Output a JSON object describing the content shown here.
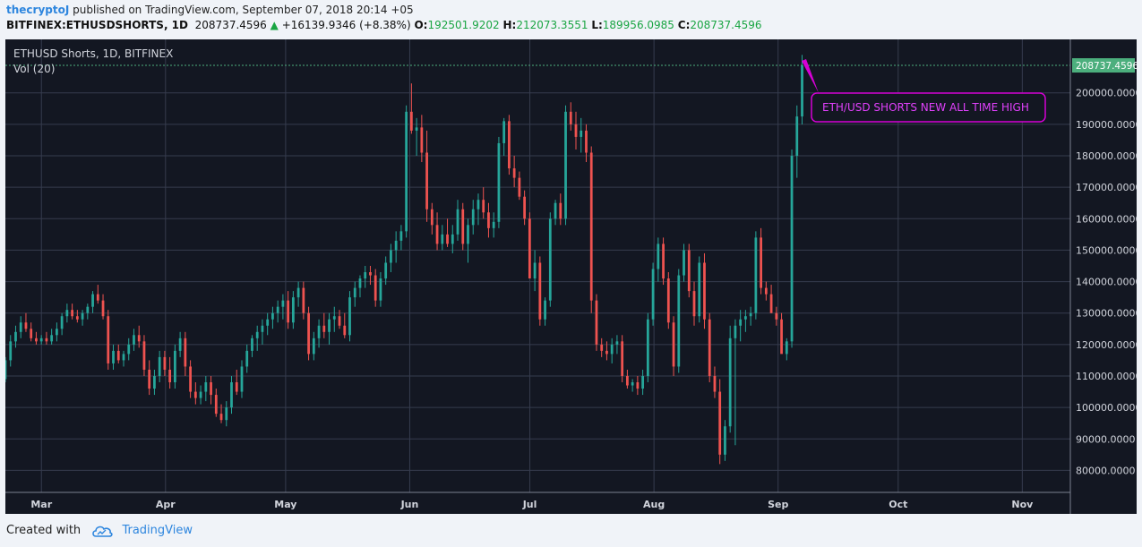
{
  "header": {
    "author": "thecryptoJ",
    "published": "published on TradingView.com, September 07, 2018 20:14 +05",
    "symbol": "BITFINEX:ETHUSDSHORTS, 1D",
    "last": "208737.4596",
    "change_arrow": "▲",
    "change": "+16139.9346 (+8.38%)",
    "o_label": "O:",
    "o_value": "192501.9202",
    "h_label": "H:",
    "h_value": "212073.3551",
    "l_label": "L:",
    "l_value": "189956.0985",
    "c_label": "C:",
    "c_value": "208737.4596"
  },
  "legend": {
    "title": "ETHUSD Shorts, 1D, BITFINEX",
    "volume": "Vol (20)"
  },
  "annotation": "ETH/USD SHORTS NEW ALL TIME HIGH",
  "last_price_label": "208737.4596",
  "footer": {
    "created_with": "Created with",
    "brand": "TradingView"
  },
  "colors": {
    "up": "#26a69a",
    "down": "#ef5350",
    "background": "#131722",
    "grid": "#363c4e",
    "annotation": "#d500d5",
    "last_price": "#4caf7d"
  },
  "chart_data": {
    "type": "candlestick",
    "title": "ETHUSD Shorts, 1D, BITFINEX",
    "ylim": [
      73000,
      217000
    ],
    "y_ticks": [
      80000,
      90000,
      100000,
      110000,
      120000,
      130000,
      140000,
      150000,
      160000,
      170000,
      180000,
      190000,
      200000
    ],
    "y_tick_labels": [
      "80000.0000",
      "90000.0000",
      "100000.0000",
      "110000.0000",
      "120000.0000",
      "130000.0000",
      "140000.0000",
      "150000.0000",
      "160000.0000",
      "170000.0000",
      "180000.0000",
      "190000.0000",
      "200000.0000"
    ],
    "x_start": "2018-02-20",
    "x_end": "2018-11-13",
    "x_ticks": [
      "2018-03-01",
      "2018-04-01",
      "2018-05-01",
      "2018-06-01",
      "2018-07-01",
      "2018-08-01",
      "2018-09-01",
      "2018-10-01",
      "2018-11-01"
    ],
    "x_tick_labels": [
      "Mar",
      "Apr",
      "May",
      "Jun",
      "Jul",
      "Aug",
      "Sep",
      "Oct",
      "Nov"
    ],
    "last_price": 208737.4596,
    "annotation_text": "ETH/USD SHORTS NEW ALL TIME HIGH",
    "candles_ohlc": [
      [
        109000,
        116000,
        108000,
        115000
      ],
      [
        115000,
        123000,
        113000,
        121000
      ],
      [
        121000,
        126000,
        119000,
        124000
      ],
      [
        124000,
        129000,
        122000,
        127000
      ],
      [
        127000,
        130000,
        124000,
        125000
      ],
      [
        125000,
        127000,
        121000,
        122000
      ],
      [
        122000,
        124000,
        120000,
        121000
      ],
      [
        121000,
        123000,
        120000,
        122000
      ],
      [
        122000,
        124000,
        120000,
        121000
      ],
      [
        121000,
        125000,
        120000,
        123000
      ],
      [
        123000,
        127000,
        121000,
        125000
      ],
      [
        125000,
        130000,
        123000,
        129000
      ],
      [
        129000,
        133000,
        127000,
        131000
      ],
      [
        131000,
        133000,
        128000,
        129000
      ],
      [
        129000,
        131000,
        127000,
        128000
      ],
      [
        128000,
        131000,
        126000,
        130000
      ],
      [
        130000,
        133000,
        128000,
        132000
      ],
      [
        132000,
        137000,
        130000,
        136000
      ],
      [
        136000,
        139000,
        133000,
        134000
      ],
      [
        134000,
        136000,
        128000,
        129000
      ],
      [
        129000,
        131000,
        112000,
        114000
      ],
      [
        114000,
        120000,
        112000,
        118000
      ],
      [
        118000,
        120000,
        114000,
        115000
      ],
      [
        115000,
        118000,
        113000,
        117000
      ],
      [
        117000,
        122000,
        115000,
        120000
      ],
      [
        120000,
        125000,
        118000,
        123000
      ],
      [
        123000,
        126000,
        119000,
        121000
      ],
      [
        121000,
        123000,
        110000,
        112000
      ],
      [
        112000,
        115000,
        104000,
        106000
      ],
      [
        106000,
        112000,
        104000,
        110000
      ],
      [
        110000,
        118000,
        108000,
        116000
      ],
      [
        116000,
        118000,
        110000,
        112000
      ],
      [
        112000,
        116000,
        106000,
        108000
      ],
      [
        108000,
        120000,
        106000,
        118000
      ],
      [
        118000,
        124000,
        116000,
        122000
      ],
      [
        122000,
        124000,
        110000,
        113000
      ],
      [
        113000,
        115000,
        103000,
        105000
      ],
      [
        105000,
        108000,
        101000,
        103000
      ],
      [
        103000,
        107000,
        101000,
        105000
      ],
      [
        105000,
        110000,
        102000,
        108000
      ],
      [
        108000,
        110000,
        101000,
        104000
      ],
      [
        104000,
        106000,
        97000,
        98000
      ],
      [
        98000,
        101000,
        95000,
        96000
      ],
      [
        96000,
        102000,
        94000,
        100000
      ],
      [
        100000,
        110000,
        98000,
        108000
      ],
      [
        108000,
        112000,
        104000,
        105000
      ],
      [
        105000,
        115000,
        103000,
        113000
      ],
      [
        113000,
        120000,
        111000,
        118000
      ],
      [
        118000,
        123000,
        116000,
        122000
      ],
      [
        122000,
        126000,
        118000,
        124000
      ],
      [
        124000,
        128000,
        120000,
        126000
      ],
      [
        126000,
        130000,
        123000,
        128000
      ],
      [
        128000,
        132000,
        125000,
        130000
      ],
      [
        130000,
        134000,
        127000,
        132000
      ],
      [
        132000,
        136000,
        128000,
        134000
      ],
      [
        134000,
        137000,
        125000,
        127000
      ],
      [
        127000,
        137000,
        125000,
        135000
      ],
      [
        135000,
        140000,
        132000,
        138000
      ],
      [
        138000,
        140000,
        128000,
        130000
      ],
      [
        130000,
        132000,
        115000,
        117000
      ],
      [
        117000,
        124000,
        115000,
        122000
      ],
      [
        122000,
        128000,
        119000,
        126000
      ],
      [
        126000,
        130000,
        122000,
        124000
      ],
      [
        124000,
        130000,
        120000,
        128000
      ],
      [
        128000,
        132000,
        124000,
        129000
      ],
      [
        129000,
        131000,
        125000,
        126000
      ],
      [
        126000,
        130000,
        122000,
        123000
      ],
      [
        123000,
        137000,
        121000,
        135000
      ],
      [
        135000,
        140000,
        132000,
        138000
      ],
      [
        138000,
        142000,
        135000,
        141000
      ],
      [
        141000,
        145000,
        138000,
        143000
      ],
      [
        143000,
        145000,
        139000,
        142000
      ],
      [
        142000,
        144000,
        132000,
        134000
      ],
      [
        134000,
        143000,
        132000,
        141000
      ],
      [
        141000,
        148000,
        139000,
        146000
      ],
      [
        146000,
        152000,
        143000,
        150000
      ],
      [
        150000,
        156000,
        146000,
        153000
      ],
      [
        153000,
        158000,
        150000,
        156000
      ],
      [
        156000,
        196000,
        154000,
        194000
      ],
      [
        194000,
        203000,
        187000,
        188000
      ],
      [
        188000,
        192000,
        180000,
        189000
      ],
      [
        189000,
        193000,
        178000,
        181000
      ],
      [
        181000,
        188000,
        159000,
        163000
      ],
      [
        163000,
        165000,
        155000,
        158000
      ],
      [
        158000,
        162000,
        150000,
        152000
      ],
      [
        152000,
        158000,
        150000,
        155000
      ],
      [
        155000,
        160000,
        151000,
        152000
      ],
      [
        152000,
        158000,
        149000,
        155000
      ],
      [
        155000,
        166000,
        153000,
        163000
      ],
      [
        163000,
        165000,
        150000,
        152000
      ],
      [
        152000,
        160000,
        146000,
        158000
      ],
      [
        158000,
        166000,
        155000,
        163000
      ],
      [
        163000,
        168000,
        158000,
        166000
      ],
      [
        166000,
        170000,
        160000,
        162000
      ],
      [
        162000,
        165000,
        154000,
        157000
      ],
      [
        157000,
        162000,
        154000,
        159000
      ],
      [
        159000,
        186000,
        157000,
        184000
      ],
      [
        184000,
        192000,
        180000,
        191000
      ],
      [
        191000,
        193000,
        174000,
        176000
      ],
      [
        176000,
        180000,
        170000,
        173000
      ],
      [
        173000,
        175000,
        166000,
        167000
      ],
      [
        167000,
        169000,
        158000,
        160000
      ],
      [
        160000,
        162000,
        148000,
        141000
      ],
      [
        141000,
        150000,
        137000,
        146000
      ],
      [
        146000,
        148000,
        126000,
        128000
      ],
      [
        128000,
        135000,
        126000,
        134000
      ],
      [
        134000,
        162000,
        132000,
        160000
      ],
      [
        160000,
        166000,
        158000,
        165000
      ],
      [
        165000,
        168000,
        158000,
        160000
      ],
      [
        160000,
        196000,
        158000,
        194000
      ],
      [
        194000,
        197000,
        188000,
        190000
      ],
      [
        190000,
        194000,
        182000,
        186000
      ],
      [
        186000,
        192000,
        181000,
        188000
      ],
      [
        188000,
        190000,
        178000,
        181000
      ],
      [
        181000,
        183000,
        130000,
        134000
      ],
      [
        134000,
        136000,
        118000,
        120000
      ],
      [
        120000,
        122000,
        116000,
        118000
      ],
      [
        118000,
        121000,
        115000,
        117000
      ],
      [
        117000,
        122000,
        114000,
        120000
      ],
      [
        120000,
        123000,
        117000,
        121000
      ],
      [
        121000,
        123000,
        108000,
        110000
      ],
      [
        110000,
        112000,
        106000,
        107000
      ],
      [
        107000,
        109000,
        105000,
        108000
      ],
      [
        108000,
        110000,
        104000,
        106000
      ],
      [
        106000,
        112000,
        104000,
        110000
      ],
      [
        110000,
        130000,
        108000,
        128000
      ],
      [
        128000,
        146000,
        126000,
        144000
      ],
      [
        144000,
        154000,
        140000,
        152000
      ],
      [
        152000,
        154000,
        139000,
        141000
      ],
      [
        141000,
        143000,
        125000,
        127000
      ],
      [
        127000,
        129000,
        110000,
        113000
      ],
      [
        113000,
        144000,
        111000,
        142000
      ],
      [
        142000,
        152000,
        140000,
        150000
      ],
      [
        150000,
        152000,
        135000,
        137000
      ],
      [
        137000,
        140000,
        126000,
        129000
      ],
      [
        129000,
        148000,
        127000,
        146000
      ],
      [
        146000,
        149000,
        125000,
        128000
      ],
      [
        128000,
        130000,
        108000,
        110000
      ],
      [
        110000,
        113000,
        103000,
        105000
      ],
      [
        105000,
        109000,
        82000,
        85000
      ],
      [
        85000,
        96000,
        83000,
        94000
      ],
      [
        94000,
        126000,
        92000,
        122000
      ],
      [
        122000,
        128000,
        88000,
        126000
      ],
      [
        126000,
        131000,
        121000,
        128000
      ],
      [
        128000,
        131000,
        124000,
        129000
      ],
      [
        129000,
        132000,
        126000,
        130000
      ],
      [
        130000,
        156000,
        128000,
        154000
      ],
      [
        154000,
        157000,
        136000,
        138000
      ],
      [
        138000,
        140000,
        134000,
        136000
      ],
      [
        136000,
        139000,
        130000,
        130000
      ],
      [
        130000,
        132000,
        126000,
        128000
      ],
      [
        128000,
        130000,
        118000,
        117000
      ],
      [
        117000,
        122000,
        115000,
        121000
      ],
      [
        121000,
        182000,
        119000,
        180000
      ],
      [
        180000,
        196000,
        173000,
        192500
      ],
      [
        192500,
        212073,
        189956,
        208737
      ]
    ]
  }
}
